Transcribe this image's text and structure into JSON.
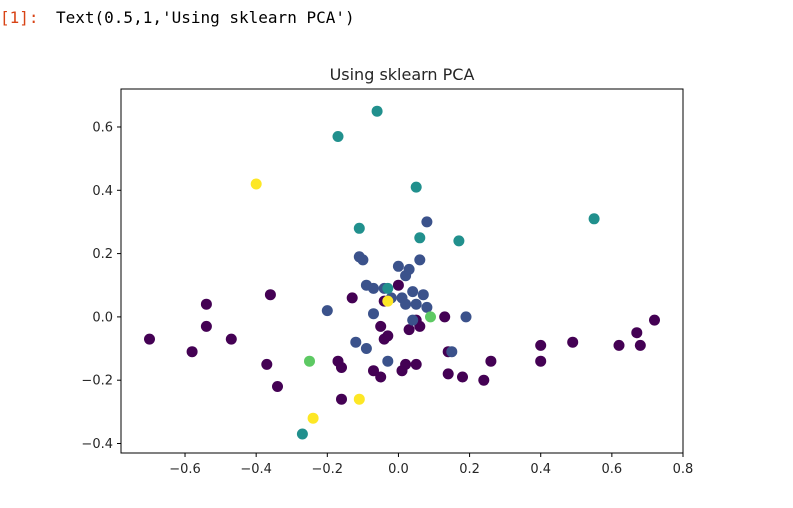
{
  "cell": {
    "out_prompt": "[1]:",
    "out_text": "Text(0.5,1,'Using sklearn PCA')"
  },
  "chart_data": {
    "type": "scatter",
    "title": "Using sklearn PCA",
    "xlabel": "",
    "ylabel": "",
    "xlim": [
      -0.78,
      0.8
    ],
    "ylim": [
      -0.43,
      0.72
    ],
    "xticks": [
      -0.6,
      -0.4,
      -0.2,
      0.0,
      0.2,
      0.4,
      0.6,
      0.8
    ],
    "xtick_labels": [
      "−0.6",
      "−0.4",
      "−0.2",
      "0.0",
      "0.2",
      "0.4",
      "0.6",
      "0.8"
    ],
    "yticks": [
      -0.4,
      -0.2,
      0.0,
      0.2,
      0.4,
      0.6
    ],
    "ytick_labels": [
      "−0.4",
      "−0.2",
      "0.0",
      "0.2",
      "0.4",
      "0.6"
    ],
    "grid": false,
    "colormap": "viridis",
    "colors": {
      "c0": "#440154",
      "c1": "#3b528b",
      "c2": "#21908d",
      "c3": "#5dc963",
      "c4": "#fde725"
    },
    "points": [
      {
        "x": -0.7,
        "y": -0.07,
        "c": "c0"
      },
      {
        "x": -0.58,
        "y": -0.11,
        "c": "c0"
      },
      {
        "x": -0.54,
        "y": 0.04,
        "c": "c0"
      },
      {
        "x": -0.54,
        "y": -0.03,
        "c": "c0"
      },
      {
        "x": -0.47,
        "y": -0.07,
        "c": "c0"
      },
      {
        "x": -0.36,
        "y": 0.07,
        "c": "c0"
      },
      {
        "x": -0.37,
        "y": -0.15,
        "c": "c0"
      },
      {
        "x": -0.34,
        "y": -0.22,
        "c": "c0"
      },
      {
        "x": -0.16,
        "y": -0.26,
        "c": "c0"
      },
      {
        "x": -0.17,
        "y": -0.14,
        "c": "c0"
      },
      {
        "x": -0.16,
        "y": -0.16,
        "c": "c0"
      },
      {
        "x": -0.13,
        "y": 0.06,
        "c": "c0"
      },
      {
        "x": -0.07,
        "y": -0.17,
        "c": "c0"
      },
      {
        "x": -0.05,
        "y": -0.19,
        "c": "c0"
      },
      {
        "x": -0.04,
        "y": -0.07,
        "c": "c0"
      },
      {
        "x": -0.05,
        "y": -0.03,
        "c": "c0"
      },
      {
        "x": -0.03,
        "y": -0.06,
        "c": "c0"
      },
      {
        "x": -0.04,
        "y": 0.05,
        "c": "c0"
      },
      {
        "x": 0.0,
        "y": 0.1,
        "c": "c0"
      },
      {
        "x": 0.01,
        "y": -0.17,
        "c": "c0"
      },
      {
        "x": 0.02,
        "y": -0.15,
        "c": "c0"
      },
      {
        "x": 0.03,
        "y": -0.04,
        "c": "c0"
      },
      {
        "x": 0.05,
        "y": -0.01,
        "c": "c0"
      },
      {
        "x": 0.05,
        "y": -0.15,
        "c": "c0"
      },
      {
        "x": 0.06,
        "y": -0.03,
        "c": "c0"
      },
      {
        "x": 0.13,
        "y": 0.0,
        "c": "c0"
      },
      {
        "x": 0.14,
        "y": -0.11,
        "c": "c0"
      },
      {
        "x": 0.14,
        "y": -0.18,
        "c": "c0"
      },
      {
        "x": 0.18,
        "y": -0.19,
        "c": "c0"
      },
      {
        "x": 0.24,
        "y": -0.2,
        "c": "c0"
      },
      {
        "x": 0.26,
        "y": -0.14,
        "c": "c0"
      },
      {
        "x": 0.4,
        "y": -0.09,
        "c": "c0"
      },
      {
        "x": 0.4,
        "y": -0.14,
        "c": "c0"
      },
      {
        "x": 0.49,
        "y": -0.08,
        "c": "c0"
      },
      {
        "x": 0.62,
        "y": -0.09,
        "c": "c0"
      },
      {
        "x": 0.67,
        "y": -0.05,
        "c": "c0"
      },
      {
        "x": 0.68,
        "y": -0.09,
        "c": "c0"
      },
      {
        "x": 0.72,
        "y": -0.01,
        "c": "c0"
      },
      {
        "x": -0.2,
        "y": 0.02,
        "c": "c1"
      },
      {
        "x": -0.12,
        "y": -0.08,
        "c": "c1"
      },
      {
        "x": -0.11,
        "y": 0.19,
        "c": "c1"
      },
      {
        "x": -0.1,
        "y": 0.18,
        "c": "c1"
      },
      {
        "x": -0.09,
        "y": 0.1,
        "c": "c1"
      },
      {
        "x": -0.07,
        "y": 0.09,
        "c": "c1"
      },
      {
        "x": -0.07,
        "y": 0.01,
        "c": "c1"
      },
      {
        "x": -0.04,
        "y": 0.09,
        "c": "c1"
      },
      {
        "x": -0.02,
        "y": 0.06,
        "c": "c1"
      },
      {
        "x": -0.03,
        "y": -0.14,
        "c": "c1"
      },
      {
        "x": -0.09,
        "y": -0.1,
        "c": "c1"
      },
      {
        "x": 0.0,
        "y": 0.16,
        "c": "c1"
      },
      {
        "x": 0.01,
        "y": 0.06,
        "c": "c1"
      },
      {
        "x": 0.02,
        "y": 0.04,
        "c": "c1"
      },
      {
        "x": 0.02,
        "y": 0.13,
        "c": "c1"
      },
      {
        "x": 0.03,
        "y": 0.15,
        "c": "c1"
      },
      {
        "x": 0.04,
        "y": 0.08,
        "c": "c1"
      },
      {
        "x": 0.05,
        "y": 0.04,
        "c": "c1"
      },
      {
        "x": 0.06,
        "y": 0.18,
        "c": "c1"
      },
      {
        "x": 0.07,
        "y": 0.07,
        "c": "c1"
      },
      {
        "x": 0.08,
        "y": 0.3,
        "c": "c1"
      },
      {
        "x": 0.08,
        "y": 0.03,
        "c": "c1"
      },
      {
        "x": 0.04,
        "y": -0.01,
        "c": "c1"
      },
      {
        "x": 0.15,
        "y": -0.11,
        "c": "c1"
      },
      {
        "x": 0.19,
        "y": 0.0,
        "c": "c1"
      },
      {
        "x": -0.27,
        "y": -0.37,
        "c": "c2"
      },
      {
        "x": -0.03,
        "y": 0.09,
        "c": "c2"
      },
      {
        "x": 0.06,
        "y": 0.25,
        "c": "c2"
      },
      {
        "x": 0.17,
        "y": 0.24,
        "c": "c2"
      },
      {
        "x": -0.17,
        "y": 0.57,
        "c": "c2"
      },
      {
        "x": -0.06,
        "y": 0.65,
        "c": "c2"
      },
      {
        "x": 0.05,
        "y": 0.41,
        "c": "c2"
      },
      {
        "x": -0.11,
        "y": 0.28,
        "c": "c2"
      },
      {
        "x": 0.55,
        "y": 0.31,
        "c": "c2"
      },
      {
        "x": -0.25,
        "y": -0.14,
        "c": "c3"
      },
      {
        "x": 0.09,
        "y": 0.0,
        "c": "c3"
      },
      {
        "x": -0.4,
        "y": 0.42,
        "c": "c4"
      },
      {
        "x": -0.24,
        "y": -0.32,
        "c": "c4"
      },
      {
        "x": -0.11,
        "y": -0.26,
        "c": "c4"
      },
      {
        "x": -0.03,
        "y": 0.05,
        "c": "c4"
      }
    ]
  }
}
